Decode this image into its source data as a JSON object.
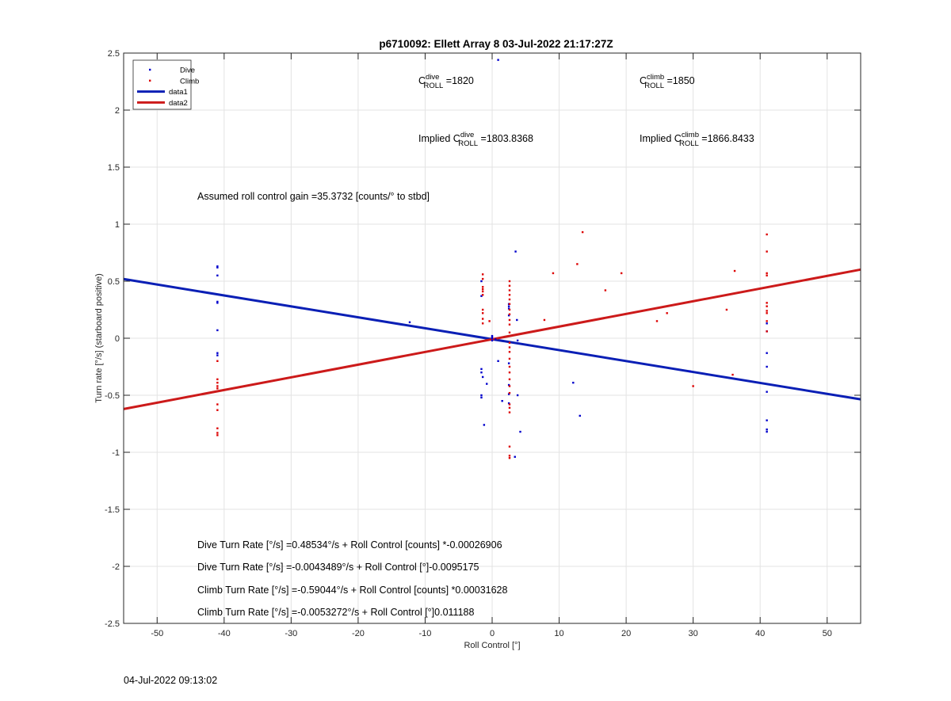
{
  "chart_data": {
    "type": "scatter",
    "title": "p6710092: Ellett Array 8 03-Jul-2022 21:17:27Z",
    "xlabel": "Roll Control [°]",
    "ylabel": "Turn rate [°/s] (starboard positive)",
    "xlim": [
      -55,
      55
    ],
    "ylim": [
      -2.5,
      2.5
    ],
    "xticks": [
      -50,
      -40,
      -30,
      -20,
      -10,
      0,
      10,
      20,
      30,
      40,
      50
    ],
    "yticks": [
      -2.5,
      -2,
      -1.5,
      -1,
      -0.5,
      0,
      0.5,
      1,
      1.5,
      2,
      2.5
    ],
    "grid": true,
    "legend_placement": "top-left",
    "legend": [
      "Dive",
      "Climb",
      "data1",
      "data2"
    ],
    "colors": {
      "dive": "#0000cc",
      "climb": "#dd0000",
      "line1": "#0a1fb5",
      "line2": "#cc1a1a"
    },
    "series": [
      {
        "name": "Dive",
        "kind": "points",
        "points": [
          [
            -41,
            0.63
          ],
          [
            -41,
            0.62
          ],
          [
            -41,
            0.55
          ],
          [
            -41,
            0.32
          ],
          [
            -41,
            0.31
          ],
          [
            -41,
            0.07
          ],
          [
            -41,
            -0.13
          ],
          [
            -41,
            -0.15
          ],
          [
            -12.3,
            0.14
          ],
          [
            -1.6,
            0.5
          ],
          [
            -1.6,
            0.37
          ],
          [
            -1.6,
            -0.27
          ],
          [
            -1.6,
            -0.3
          ],
          [
            -1.6,
            -0.5
          ],
          [
            -1.6,
            -0.52
          ],
          [
            -1.4,
            -0.34
          ],
          [
            -1.2,
            -0.76
          ],
          [
            -0.8,
            -0.4
          ],
          [
            0,
            0.02
          ],
          [
            0,
            0.0
          ],
          [
            0,
            -0.02
          ],
          [
            0,
            0.01
          ],
          [
            0.5,
            -0.01
          ],
          [
            0.9,
            2.44
          ],
          [
            0.9,
            -0.2
          ],
          [
            1.5,
            -0.55
          ],
          [
            2.5,
            0.3
          ],
          [
            2.5,
            0.28
          ],
          [
            2.5,
            0.26
          ],
          [
            2.5,
            0.2
          ],
          [
            2.5,
            -0.22
          ],
          [
            2.5,
            -0.41
          ],
          [
            2.5,
            -0.49
          ],
          [
            2.5,
            -0.57
          ],
          [
            3.5,
            0.76
          ],
          [
            3.7,
            0.16
          ],
          [
            3.8,
            -0.02
          ],
          [
            3.8,
            -0.5
          ],
          [
            4.2,
            -0.82
          ],
          [
            3.4,
            -1.04
          ],
          [
            12.1,
            -0.39
          ],
          [
            13.1,
            -0.68
          ],
          [
            29.5,
            -0.29
          ],
          [
            41,
            0.13
          ],
          [
            41,
            0.06
          ],
          [
            41,
            -0.13
          ],
          [
            41,
            -0.25
          ],
          [
            41,
            -0.47
          ],
          [
            41,
            -0.72
          ],
          [
            41,
            -0.8
          ],
          [
            41,
            -0.82
          ]
        ]
      },
      {
        "name": "Climb",
        "kind": "points",
        "points": [
          [
            -41,
            -0.2
          ],
          [
            -41,
            -0.36
          ],
          [
            -41,
            -0.39
          ],
          [
            -41,
            -0.42
          ],
          [
            -41,
            -0.44
          ],
          [
            -41,
            -0.58
          ],
          [
            -41,
            -0.63
          ],
          [
            -41,
            -0.79
          ],
          [
            -41,
            -0.83
          ],
          [
            -41,
            -0.85
          ],
          [
            -1.4,
            0.56
          ],
          [
            -1.4,
            0.52
          ],
          [
            -1.4,
            0.45
          ],
          [
            -1.4,
            0.43
          ],
          [
            -1.4,
            0.41
          ],
          [
            -1.4,
            0.38
          ],
          [
            -1.4,
            0.25
          ],
          [
            -1.4,
            0.22
          ],
          [
            -1.4,
            0.17
          ],
          [
            -1.4,
            0.13
          ],
          [
            -0.4,
            0.15
          ],
          [
            2.6,
            0.5
          ],
          [
            2.6,
            0.46
          ],
          [
            2.6,
            0.42
          ],
          [
            2.6,
            0.38
          ],
          [
            2.6,
            0.34
          ],
          [
            2.6,
            0.3
          ],
          [
            2.6,
            0.25
          ],
          [
            2.6,
            0.21
          ],
          [
            2.6,
            0.16
          ],
          [
            2.6,
            0.12
          ],
          [
            2.6,
            0.05
          ],
          [
            2.6,
            -0.04
          ],
          [
            2.6,
            -0.08
          ],
          [
            2.6,
            -0.12
          ],
          [
            2.6,
            -0.18
          ],
          [
            2.6,
            -0.25
          ],
          [
            2.6,
            -0.3
          ],
          [
            2.6,
            -0.36
          ],
          [
            2.6,
            -0.42
          ],
          [
            2.6,
            -0.48
          ],
          [
            2.6,
            -0.58
          ],
          [
            2.6,
            -0.61
          ],
          [
            2.6,
            -0.65
          ],
          [
            2.6,
            -0.95
          ],
          [
            2.6,
            -1.03
          ],
          [
            2.6,
            -1.05
          ],
          [
            7.8,
            0.16
          ],
          [
            9.1,
            0.57
          ],
          [
            12.7,
            0.65
          ],
          [
            13.5,
            0.93
          ],
          [
            16.9,
            0.42
          ],
          [
            19.3,
            0.57
          ],
          [
            24.6,
            0.15
          ],
          [
            26.1,
            0.22
          ],
          [
            30,
            -0.42
          ],
          [
            35,
            0.25
          ],
          [
            35.9,
            -0.32
          ],
          [
            36.2,
            0.59
          ],
          [
            41,
            0.91
          ],
          [
            41,
            0.76
          ],
          [
            41,
            0.57
          ],
          [
            41,
            0.55
          ],
          [
            41,
            0.31
          ],
          [
            41,
            0.28
          ],
          [
            41,
            0.24
          ],
          [
            41,
            0.22
          ],
          [
            41,
            0.15
          ],
          [
            41,
            0.06
          ]
        ]
      },
      {
        "name": "data1",
        "kind": "line",
        "points": [
          [
            -55,
            0.5188
          ],
          [
            55,
            -0.5358
          ]
        ]
      },
      {
        "name": "data2",
        "kind": "line",
        "points": [
          [
            -55,
            -0.6208
          ],
          [
            55,
            0.6021
          ]
        ]
      }
    ],
    "annotations": [
      {
        "id": "c_dive",
        "base": "C",
        "sup": "dive",
        "sub": "ROLL",
        "text": " =1820"
      },
      {
        "id": "c_climb",
        "base": "C",
        "sup": "climb",
        "sub": "ROLL",
        "text": " =1850"
      },
      {
        "id": "implied_dive",
        "prefix": "Implied ",
        "base": "C",
        "sup": "dive",
        "sub": "ROLL",
        "text": " =1803.8368"
      },
      {
        "id": "implied_climb",
        "prefix": "Implied ",
        "base": "C",
        "sup": "climb",
        "sub": "ROLL",
        "text": " =1866.8433"
      },
      {
        "id": "gain",
        "text": "Assumed roll control gain =35.3732 [counts/° to stbd]"
      },
      {
        "id": "eq1",
        "text": "Dive Turn Rate [°/s] =0.48534°/s + Roll Control [counts] *-0.00026906"
      },
      {
        "id": "eq2",
        "text": "Dive Turn Rate [°/s] =-0.0043489°/s + Roll Control [°]-0.0095175"
      },
      {
        "id": "eq3",
        "text": "Climb Turn Rate [°/s] =-0.59044°/s + Roll Control [counts] *0.00031628"
      },
      {
        "id": "eq4",
        "text": "Climb Turn Rate [°/s] =-0.0053272°/s + Roll Control [°]0.011188"
      }
    ]
  },
  "footer": {
    "timestamp": "04-Jul-2022 09:13:02"
  }
}
